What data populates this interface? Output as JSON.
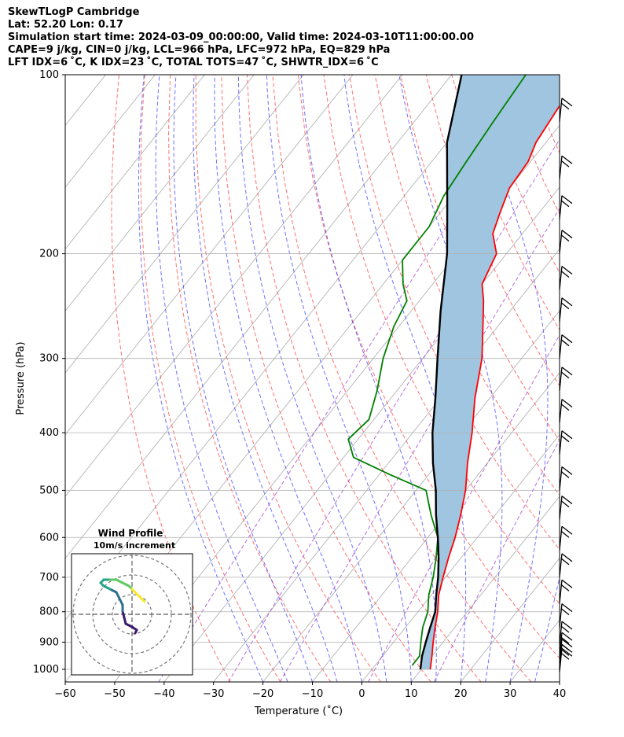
{
  "header": {
    "line1": "SkewTLogP Cambridge",
    "line2": "Lat: 52.20   Lon: 0.17",
    "line3": "Simulation start time: 2024-03-09_00:00:00, Valid time: 2024-03-10T11:00:00.00",
    "line4": "CAPE=9 j/kg, CIN=0 j/kg, LCL=966 hPa, LFC=972 hPa, EQ=829 hPa",
    "line5": "LFT IDX=6 ˚C, K IDX=23 ˚C, TOTAL TOTS=47 ˚C, SHWTR_IDX=6 ˚C"
  },
  "chart_data": {
    "type": "line",
    "xlabel": "Temperature (˚C)",
    "ylabel": "Pressure (hPa)",
    "x_ticks": [
      -60,
      -50,
      -40,
      -30,
      -20,
      -10,
      0,
      10,
      20,
      30,
      40
    ],
    "y_ticks": [
      100,
      200,
      300,
      400,
      500,
      600,
      700,
      800,
      900,
      1000
    ],
    "xlim": [
      -60,
      40
    ],
    "ylim": [
      1050,
      100
    ],
    "y_scale": "log",
    "skew": "skewed isotherms (SkewT-LogP)",
    "grid": true,
    "cape_shading_color": "#9fc5e0",
    "series": [
      {
        "color": "#ff0000",
        "points": [
          [
            11.8,
            1000
          ],
          [
            10,
            950
          ],
          [
            8,
            900
          ],
          [
            6,
            850
          ],
          [
            4,
            800
          ],
          [
            1.5,
            750
          ],
          [
            -0.5,
            700
          ],
          [
            -2.5,
            650
          ],
          [
            -4.5,
            600
          ],
          [
            -7,
            550
          ],
          [
            -10,
            500
          ],
          [
            -14,
            450
          ],
          [
            -18,
            400
          ],
          [
            -23,
            350
          ],
          [
            -28,
            300
          ],
          [
            -33,
            265
          ],
          [
            -37,
            240
          ],
          [
            -40,
            225
          ],
          [
            -42,
            200
          ],
          [
            -46,
            185
          ],
          [
            -48,
            170
          ],
          [
            -50,
            155
          ],
          [
            -50.5,
            140
          ],
          [
            -52,
            130
          ],
          [
            -53,
            115
          ],
          [
            -54,
            100
          ]
        ]
      },
      {
        "color": "#008000",
        "points": [
          [
            7.5,
            985
          ],
          [
            7.5,
            950
          ],
          [
            5.5,
            900
          ],
          [
            3.5,
            850
          ],
          [
            2,
            800
          ],
          [
            -0.5,
            750
          ],
          [
            -2.5,
            700
          ],
          [
            -5,
            650
          ],
          [
            -8,
            600
          ],
          [
            -13,
            550
          ],
          [
            -18,
            500
          ],
          [
            -28,
            470
          ],
          [
            -38,
            440
          ],
          [
            -42,
            410
          ],
          [
            -41,
            380
          ],
          [
            -44,
            340
          ],
          [
            -48,
            300
          ],
          [
            -51,
            265
          ],
          [
            -52.5,
            240
          ],
          [
            -56,
            225
          ],
          [
            -60,
            205
          ],
          [
            -60,
            180
          ],
          [
            -62,
            160
          ],
          [
            -63,
            140
          ],
          [
            -64,
            120
          ],
          [
            -65,
            100
          ]
        ]
      },
      {
        "color": "#000000",
        "points": [
          [
            9.8,
            1000
          ],
          [
            8,
            950
          ],
          [
            6.5,
            900
          ],
          [
            5,
            850
          ],
          [
            3.5,
            800
          ],
          [
            1,
            750
          ],
          [
            -1.5,
            700
          ],
          [
            -4.5,
            650
          ],
          [
            -8,
            600
          ],
          [
            -12,
            550
          ],
          [
            -16,
            500
          ],
          [
            -21,
            450
          ],
          [
            -26,
            400
          ],
          [
            -31,
            350
          ],
          [
            -37,
            300
          ],
          [
            -44,
            250
          ],
          [
            -52,
            200
          ],
          [
            -60,
            165
          ],
          [
            -70,
            130
          ],
          [
            -78,
            100
          ]
        ]
      }
    ],
    "dry_adiabat_color": "#ff4d4d",
    "moist_adiabat_color": "#3333ff",
    "mixing_ratio_color": "#9932cc",
    "isotherm_color": "#aaaaaa"
  },
  "hodograph": {
    "title_line1": "Wind Profile",
    "title_line2": "10m/s increment",
    "rings": 3,
    "trace_colors": [
      "#3b1a6e",
      "#2e6f8e",
      "#21a585",
      "#5ec962",
      "#fde725"
    ],
    "trace": [
      [
        1,
        -6
      ],
      [
        1.5,
        -5
      ],
      [
        0,
        -4
      ],
      [
        -2,
        -3
      ],
      [
        -2.5,
        -1
      ],
      [
        -3,
        1
      ],
      [
        -3,
        3
      ],
      [
        -4,
        5
      ],
      [
        -5,
        7
      ],
      [
        -7,
        8
      ],
      [
        -9,
        9
      ],
      [
        -10,
        10
      ],
      [
        -9,
        11
      ],
      [
        -7,
        11
      ],
      [
        -5,
        11
      ],
      [
        -3,
        10
      ],
      [
        -1,
        9
      ],
      [
        0,
        8
      ],
      [
        1,
        7
      ],
      [
        2,
        6
      ],
      [
        3,
        5
      ],
      [
        4,
        4
      ]
    ]
  },
  "wind_barbs": {
    "color": "#000000",
    "pressures": [
      120,
      150,
      175,
      200,
      230,
      260,
      300,
      340,
      385,
      435,
      500,
      560,
      630,
      700,
      775,
      850,
      910,
      950,
      975,
      995,
      1010
    ]
  }
}
